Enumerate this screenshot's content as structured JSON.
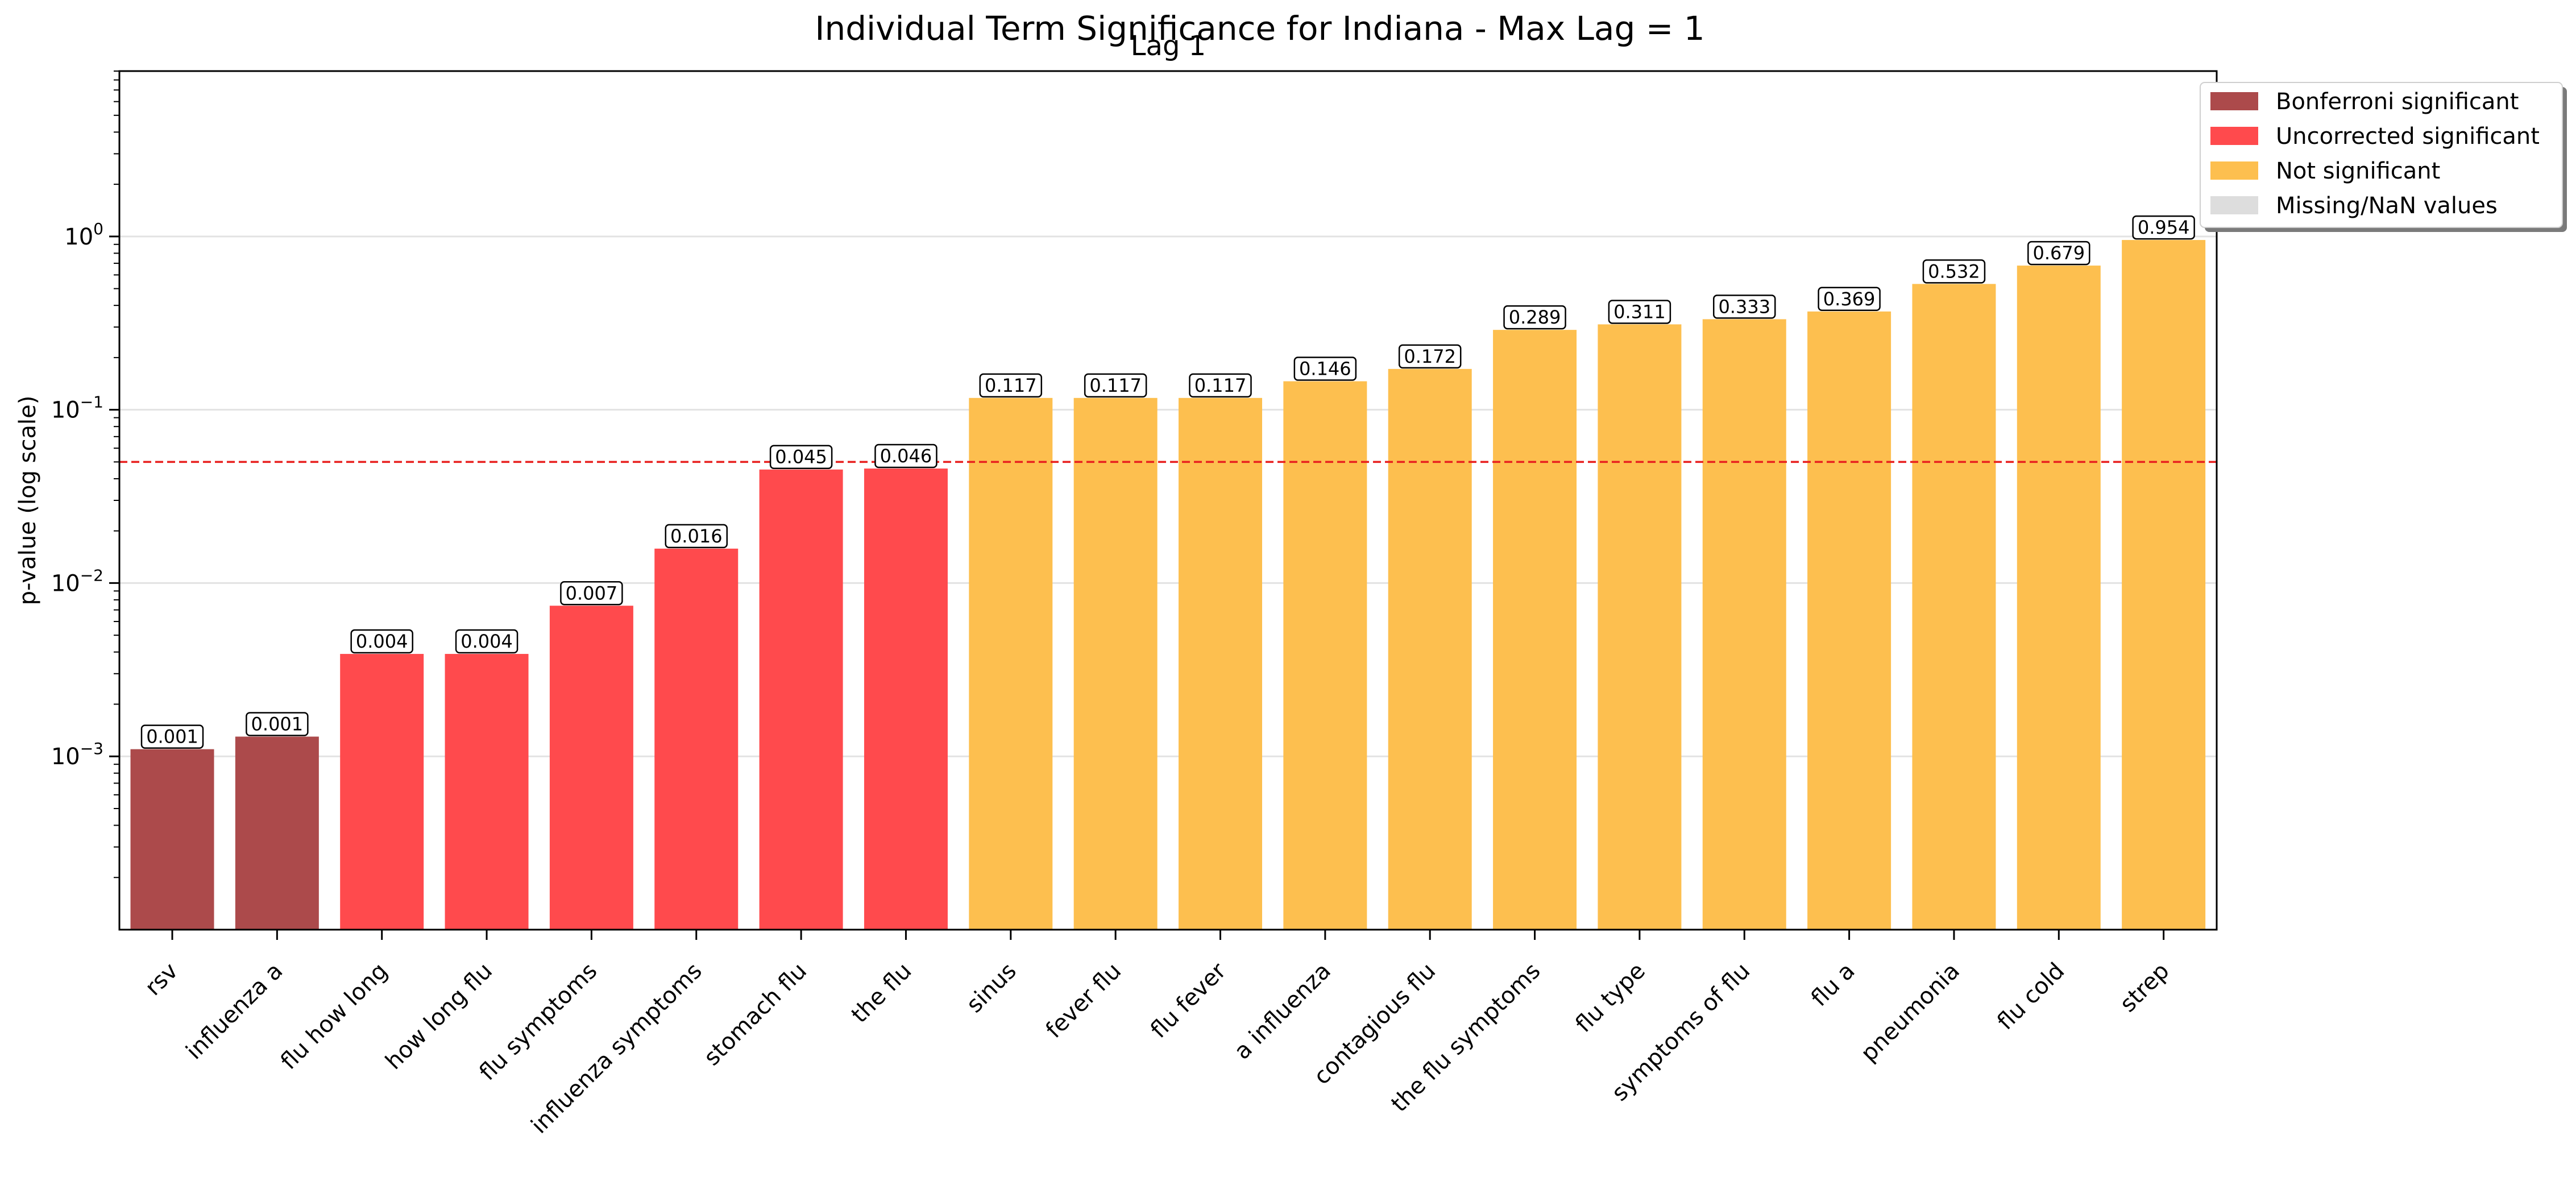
{
  "chart_data": {
    "type": "bar",
    "title": "Individual Term Significance for Indiana - Max Lag = 1",
    "subtitle": "Lag 1",
    "xlabel": "",
    "ylabel": "p-value (log scale)",
    "yscale": "log",
    "ylim": [
      0.0001,
      9.0
    ],
    "yticks": [
      {
        "label_base": "10",
        "label_exp": "−3",
        "value": 0.001
      },
      {
        "label_base": "10",
        "label_exp": "−2",
        "value": 0.01
      },
      {
        "label_base": "10",
        "label_exp": "−1",
        "value": 0.1
      },
      {
        "label_base": "10",
        "label_exp": "0",
        "value": 1
      }
    ],
    "grid": true,
    "threshold": 0.05,
    "categories": [
      "rsv",
      "influenza a",
      "flu how long",
      "how long flu",
      "flu symptoms",
      "influenza symptoms",
      "stomach flu",
      "the flu",
      "sinus",
      "fever flu",
      "flu fever",
      "a influenza",
      "contagious flu",
      "the flu symptoms",
      "flu type",
      "symptoms of flu",
      "flu a",
      "pneumonia",
      "flu cold",
      "strep"
    ],
    "values": [
      0.0011,
      0.0013,
      0.0039,
      0.0039,
      0.0074,
      0.0158,
      0.0452,
      0.0458,
      0.117,
      0.117,
      0.117,
      0.146,
      0.172,
      0.289,
      0.311,
      0.333,
      0.369,
      0.532,
      0.679,
      0.954
    ],
    "value_labels": [
      "0.001",
      "0.001",
      "0.004",
      "0.004",
      "0.007",
      "0.016",
      "0.045",
      "0.046",
      "0.117",
      "0.117",
      "0.117",
      "0.146",
      "0.172",
      "0.289",
      "0.311",
      "0.333",
      "0.369",
      "0.532",
      "0.679",
      "0.954"
    ],
    "significance": [
      "bonferroni",
      "bonferroni",
      "uncorrected",
      "uncorrected",
      "uncorrected",
      "uncorrected",
      "uncorrected",
      "uncorrected",
      "not",
      "not",
      "not",
      "not",
      "not",
      "not",
      "not",
      "not",
      "not",
      "not",
      "not",
      "not"
    ],
    "colors": {
      "bonferroni": "#ac4a4b",
      "uncorrected": "#ff4a4d",
      "not": "#fdbf4f",
      "missing": "#dddddd",
      "threshold_line": "#e8201f"
    },
    "legend": {
      "position": "top-right",
      "entries": [
        {
          "key": "bonferroni",
          "label": "Bonferroni significant"
        },
        {
          "key": "uncorrected",
          "label": "Uncorrected significant"
        },
        {
          "key": "not",
          "label": "Not significant"
        },
        {
          "key": "missing",
          "label": "Missing/NaN values"
        }
      ]
    }
  }
}
